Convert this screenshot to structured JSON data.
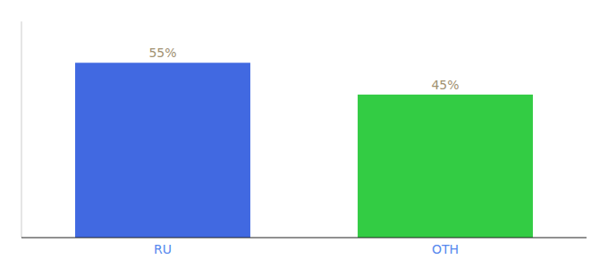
{
  "chart_data": {
    "type": "bar",
    "categories": [
      "RU",
      "OTH"
    ],
    "values": [
      55,
      45
    ],
    "value_labels": [
      "55%",
      "45%"
    ],
    "colors": [
      "#4169e1",
      "#33cc44"
    ],
    "ylim": [
      0,
      68
    ],
    "yticks": [],
    "data_labels": true,
    "tick_labels": "x",
    "grid": false
  }
}
